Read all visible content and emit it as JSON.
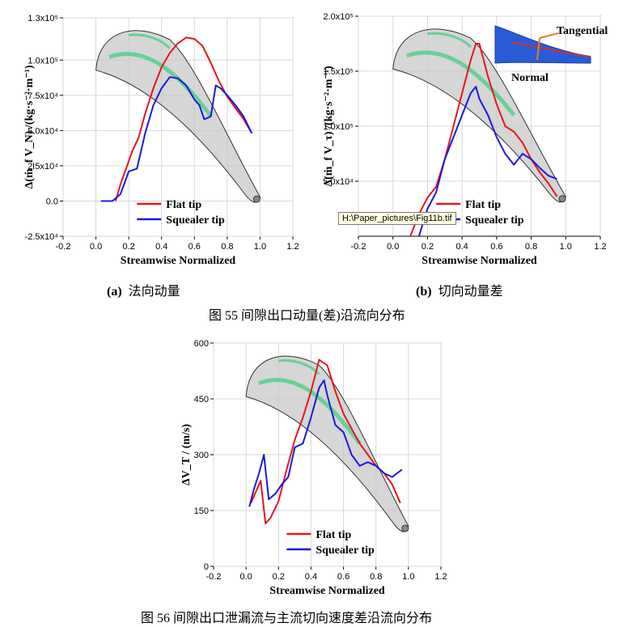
{
  "chart_data": [
    {
      "type": "line",
      "panel": "a",
      "xlabel": "Streamwise Normalized",
      "ylabel": "Δ(ṁ_f V_N) /(kg·s⁻²·m⁻¹)",
      "xlim": [
        -0.2,
        1.2
      ],
      "ylim": [
        -25000,
        130000
      ],
      "xticks": [
        "-0.2",
        "0.0",
        "0.2",
        "0.4",
        "0.6",
        "0.8",
        "1.0",
        "1.2"
      ],
      "yticks": [
        "-2.5x10⁴",
        "0.0",
        "2.5x10⁴",
        "5.0x10⁴",
        "7.5x10⁴",
        "1.0x10⁵",
        "1.3x10⁵"
      ],
      "ytick_values": [
        -25000,
        0,
        25000,
        50000,
        75000,
        100000,
        130000
      ],
      "grid": true,
      "legend_position": "bottom-center",
      "series": [
        {
          "name": "Flat tip",
          "color": "#e8141c",
          "x": [
            0.12,
            0.15,
            0.19,
            0.22,
            0.26,
            0.3,
            0.35,
            0.4,
            0.45,
            0.5,
            0.55,
            0.6,
            0.65,
            0.7,
            0.75,
            0.8,
            0.85,
            0.9,
            0.95
          ],
          "y": [
            0,
            12000,
            25000,
            35000,
            45000,
            62000,
            80000,
            95000,
            105000,
            112000,
            116000,
            115000,
            110000,
            98000,
            85000,
            74000,
            66000,
            58000,
            48000
          ]
        },
        {
          "name": "Squealer tip",
          "color": "#1a1adc",
          "x": [
            0.03,
            0.1,
            0.15,
            0.2,
            0.25,
            0.3,
            0.35,
            0.4,
            0.45,
            0.5,
            0.55,
            0.6,
            0.63,
            0.66,
            0.7,
            0.73,
            0.76,
            0.8,
            0.85,
            0.9,
            0.95
          ],
          "y": [
            0,
            0,
            5000,
            21000,
            23000,
            48000,
            68000,
            80000,
            88000,
            87000,
            82000,
            72000,
            68000,
            58000,
            60000,
            82000,
            80000,
            75000,
            68000,
            60000,
            48000
          ]
        }
      ]
    },
    {
      "type": "line",
      "panel": "b",
      "xlabel": "Streamwise Normalized",
      "ylabel": "Δ(ṁ_f V_τ) /(kg·s⁻²·m⁻¹)",
      "xlim": [
        -0.2,
        1.2
      ],
      "ylim": [
        0,
        200000
      ],
      "xticks": [
        "-0.2",
        "0.0",
        "0.2",
        "0.4",
        "0.6",
        "0.8",
        "1.0",
        "1.2"
      ],
      "yticks": [
        "5.0x10⁴",
        "1.0x10⁵",
        "1.5x10⁵",
        "2.0x10⁵"
      ],
      "ytick_values": [
        50000,
        100000,
        150000,
        200000
      ],
      "grid": true,
      "legend_position": "bottom-center",
      "inset_labels": [
        "Tangential",
        "Normal"
      ],
      "series": [
        {
          "name": "Flat tip",
          "color": "#e8141c",
          "x": [
            0.1,
            0.15,
            0.2,
            0.25,
            0.3,
            0.35,
            0.4,
            0.45,
            0.48,
            0.5,
            0.55,
            0.6,
            0.65,
            0.7,
            0.75,
            0.8,
            0.85,
            0.9,
            0.95
          ],
          "y": [
            0,
            20000,
            35000,
            45000,
            70000,
            100000,
            130000,
            160000,
            175000,
            175000,
            145000,
            120000,
            100000,
            95000,
            85000,
            70000,
            58000,
            48000,
            36000
          ]
        },
        {
          "name": "Squealer tip",
          "color": "#1a1adc",
          "x": [
            0.15,
            0.2,
            0.25,
            0.3,
            0.35,
            0.4,
            0.45,
            0.48,
            0.5,
            0.55,
            0.6,
            0.65,
            0.7,
            0.75,
            0.8,
            0.85,
            0.9,
            0.95
          ],
          "y": [
            0,
            25000,
            40000,
            70000,
            90000,
            110000,
            130000,
            136000,
            125000,
            110000,
            90000,
            75000,
            65000,
            75000,
            70000,
            62000,
            55000,
            52000
          ]
        }
      ]
    },
    {
      "type": "line",
      "panel": "c",
      "xlabel": "Streamwise Normalized",
      "ylabel": "ΔV_T / (m/s)",
      "xlim": [
        -0.2,
        1.2
      ],
      "ylim": [
        0,
        600
      ],
      "xticks": [
        "-0.2",
        "0.0",
        "0.2",
        "0.4",
        "0.6",
        "0.8",
        "1.0",
        "1.2"
      ],
      "yticks": [
        "0",
        "150",
        "300",
        "450",
        "600"
      ],
      "ytick_values": [
        0,
        150,
        300,
        450,
        600
      ],
      "grid": true,
      "legend_position": "bottom-center",
      "series": [
        {
          "name": "Flat tip",
          "color": "#e8141c",
          "x": [
            0.03,
            0.06,
            0.09,
            0.12,
            0.15,
            0.2,
            0.25,
            0.3,
            0.35,
            0.4,
            0.45,
            0.5,
            0.55,
            0.6,
            0.65,
            0.7,
            0.75,
            0.8,
            0.85,
            0.9,
            0.95
          ],
          "y": [
            170,
            200,
            230,
            115,
            130,
            175,
            260,
            340,
            400,
            470,
            555,
            540,
            470,
            410,
            370,
            330,
            300,
            270,
            250,
            220,
            170
          ]
        },
        {
          "name": "Squealer tip",
          "color": "#1a1adc",
          "x": [
            0.02,
            0.05,
            0.08,
            0.11,
            0.14,
            0.18,
            0.22,
            0.26,
            0.3,
            0.35,
            0.4,
            0.45,
            0.48,
            0.5,
            0.55,
            0.6,
            0.65,
            0.7,
            0.75,
            0.8,
            0.85,
            0.9,
            0.93,
            0.96
          ],
          "y": [
            160,
            210,
            250,
            300,
            180,
            195,
            220,
            240,
            320,
            330,
            400,
            480,
            500,
            460,
            380,
            360,
            300,
            270,
            280,
            270,
            250,
            240,
            250,
            260
          ]
        }
      ]
    }
  ],
  "legend": {
    "flat_tip": "Flat tip",
    "squealer_tip": "Squealer tip"
  },
  "tooltip": "H:\\Paper_pictures\\Fig11b.tif",
  "captions": {
    "sub_a_label": "(a)",
    "sub_a_text": "法向动量",
    "sub_b_label": "(b)",
    "sub_b_text": "切向动量差",
    "fig55": "图 55  间隙出口动量(差)沿流向分布",
    "fig56": "图 56 间隙出口泄漏流与主流切向速度差沿流向分布"
  },
  "colors": {
    "flat_tip": "#e8141c",
    "squealer_tip": "#1a1adc",
    "blade_fill": "#c8c8c8",
    "blade_stripe": "#36d07a"
  }
}
